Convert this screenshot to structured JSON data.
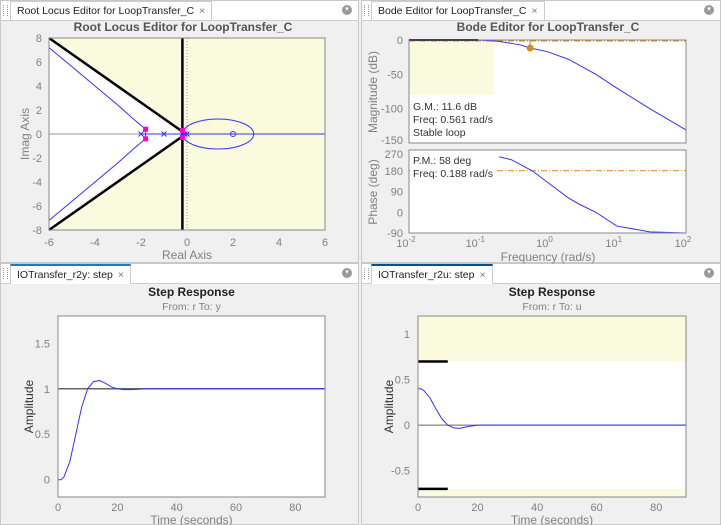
{
  "panels": {
    "rootlocus": {
      "tab": "Root Locus Editor for LoopTransfer_C",
      "close": "×"
    },
    "bode": {
      "tab": "Bode Editor for LoopTransfer_C",
      "close": "×"
    },
    "r2y": {
      "tab": "IOTransfer_r2y: step",
      "close": "×"
    },
    "r2u": {
      "tab": "IOTransfer_r2u: step",
      "close": "×"
    }
  },
  "colors": {
    "locus": "#3333ff",
    "constraint": "#fafade",
    "margin": "#d98a1c",
    "closed_loop_pole": "#ff00cc",
    "axes_text": "#808080"
  },
  "chart_data": [
    {
      "type": "line",
      "title": "Root Locus Editor for LoopTransfer_C",
      "xlabel": "Real Axis",
      "ylabel": "Imag Axis",
      "xlim": [
        -6,
        6
      ],
      "ylim": [
        -8,
        8
      ],
      "xticks": [
        "-6",
        "-4",
        "-2",
        "0",
        "2",
        "4",
        "6"
      ],
      "yticks": [
        "-8",
        "-6",
        "-4",
        "-2",
        "0",
        "2",
        "4",
        "6",
        "8"
      ],
      "branches": [
        [
          [
            -1.8,
            0.4
          ],
          [
            -2.3,
            1.2
          ],
          [
            -3.0,
            2.4
          ],
          [
            -4.0,
            4.0
          ],
          [
            -5.0,
            5.6
          ],
          [
            -6,
            7.2
          ]
        ],
        [
          [
            -1.8,
            -0.4
          ],
          [
            -2.3,
            -1.2
          ],
          [
            -3.0,
            -2.4
          ],
          [
            -4.0,
            -4.0
          ],
          [
            -5.0,
            -5.6
          ],
          [
            -6,
            -7.2
          ]
        ],
        [
          [
            -1.8,
            0.4
          ],
          [
            -1.8,
            -0.4
          ]
        ],
        [
          [
            -2,
            0
          ],
          [
            6,
            0
          ]
        ]
      ],
      "loop": {
        "center": [
          1.35,
          0
        ],
        "rx": 1.55,
        "ry": 1.25
      },
      "open_loop_poles": [
        -2,
        -1,
        -0.1,
        0
      ],
      "zeros": [
        2
      ],
      "closed_loop_poles": [
        [
          -1.8,
          0.4
        ],
        [
          -1.8,
          -0.4
        ],
        [
          -0.2,
          0.3
        ],
        [
          -0.2,
          -0.3
        ]
      ]
    },
    {
      "type": "line",
      "title": "Bode Editor for LoopTransfer_C",
      "xlabel": "Frequency (rad/s)",
      "xscale": "log",
      "xlim": [
        0.01,
        100
      ],
      "xticks": [
        "10-2",
        "10-1",
        "100",
        "101",
        "102"
      ],
      "magnitude": {
        "ylabel": "Magnitude (dB)",
        "ylim": [
          -150,
          0
        ],
        "yticks": [
          "0",
          "-50",
          "-100",
          "-150"
        ],
        "w": [
          0.01,
          0.1,
          0.2,
          0.4,
          0.561,
          1,
          2,
          5,
          10,
          30,
          100
        ],
        "db": [
          0,
          0,
          -2,
          -7,
          -11.6,
          -17,
          -28,
          -50,
          -70,
          -100,
          -131
        ]
      },
      "phase": {
        "ylabel": "Phase (deg)",
        "ylim": [
          -90,
          270
        ],
        "yticks": [
          "270",
          "180",
          "90",
          "0",
          "-90"
        ],
        "w": [
          0.2,
          0.3,
          0.45,
          0.6,
          1,
          2,
          3,
          5,
          10,
          30,
          100
        ],
        "deg": [
          240,
          228,
          200,
          180,
          130,
          62,
          32,
          0,
          -60,
          -85,
          -90
        ]
      },
      "gain_margin": {
        "gm_text": "G.M.: 11.6 dB",
        "freq_text": "Freq: 0.561 rad/s",
        "status": "Stable loop",
        "freq": 0.561,
        "db": -11.6
      },
      "phase_margin": {
        "pm_text": "P.M.: 58 deg",
        "freq_text": "Freq: 0.188 rad/s"
      }
    },
    {
      "type": "line",
      "title": "Step Response",
      "subtitle": "From: r  To: y",
      "xlabel": "Time (seconds)",
      "ylabel": "Amplitude",
      "xlim": [
        0,
        90
      ],
      "ylim": [
        -0.19,
        1.8
      ],
      "xticks": [
        "0",
        "20",
        "40",
        "60",
        "80"
      ],
      "yticks": [
        "0",
        "0.5",
        "1",
        "1.5"
      ],
      "t": [
        0,
        1,
        2,
        4,
        6,
        8,
        10,
        12,
        14,
        16,
        18,
        20,
        22,
        25,
        30,
        90
      ],
      "y": [
        0,
        0,
        0.03,
        0.2,
        0.5,
        0.8,
        1.0,
        1.08,
        1.09,
        1.06,
        1.02,
        1.0,
        0.99,
        0.99,
        1.0,
        1.0
      ],
      "reference": 1
    },
    {
      "type": "line",
      "title": "Step Response",
      "subtitle": "From: r  To: u",
      "xlabel": "Time (seconds)",
      "ylabel": "Amplitude",
      "xlim": [
        0,
        90
      ],
      "ylim": [
        -0.79,
        1.2
      ],
      "xticks": [
        "0",
        "20",
        "40",
        "60",
        "80"
      ],
      "yticks": [
        "-0.5",
        "0",
        "0.5",
        "1"
      ],
      "t": [
        0,
        1,
        2,
        4,
        6,
        8,
        10,
        12,
        14,
        16,
        18,
        20,
        90
      ],
      "y": [
        0.4,
        0.4,
        0.38,
        0.3,
        0.18,
        0.07,
        0.0,
        -0.03,
        -0.035,
        -0.02,
        -0.01,
        0,
        0
      ],
      "bounds": {
        "upper": 0.7,
        "lower": -0.7,
        "until": 10
      }
    }
  ]
}
